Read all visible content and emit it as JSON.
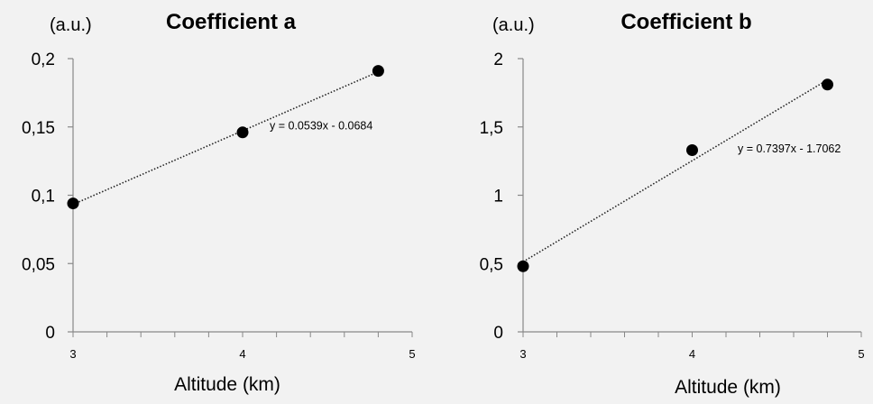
{
  "chart_data": [
    {
      "type": "scatter",
      "title": "Coefficient a",
      "ylabel": "(a.u.)",
      "xlabel": "Altitude (km)",
      "xlim": [
        3,
        5
      ],
      "ylim": [
        0,
        0.2
      ],
      "xticks": [
        {
          "value": 3,
          "label": "3"
        },
        {
          "value": 4,
          "label": "4"
        },
        {
          "value": 5,
          "label": "5"
        }
      ],
      "yticks": [
        {
          "value": 0,
          "label": "0"
        },
        {
          "value": 0.05,
          "label": "0,05"
        },
        {
          "value": 0.1,
          "label": "0,1"
        },
        {
          "value": 0.15,
          "label": "0,15"
        },
        {
          "value": 0.2,
          "label": "0,2"
        }
      ],
      "points": [
        {
          "x": 3,
          "y": 0.094
        },
        {
          "x": 4,
          "y": 0.146
        },
        {
          "x": 4.8,
          "y": 0.191
        }
      ],
      "trendline": {
        "slope": 0.0539,
        "intercept": -0.0684,
        "x_range": [
          3,
          4.8
        ],
        "equation": "y = 0.0539x - 0.0684"
      },
      "grid": false
    },
    {
      "type": "scatter",
      "title": "Coefficient b",
      "ylabel": "(a.u.)",
      "xlabel": "Altitude (km)",
      "xlim": [
        3,
        5
      ],
      "ylim": [
        0,
        2
      ],
      "xticks": [
        {
          "value": 3,
          "label": "3"
        },
        {
          "value": 4,
          "label": "4"
        },
        {
          "value": 5,
          "label": "5"
        }
      ],
      "yticks": [
        {
          "value": 0,
          "label": "0"
        },
        {
          "value": 0.5,
          "label": "0,5"
        },
        {
          "value": 1,
          "label": "1"
        },
        {
          "value": 1.5,
          "label": "1,5"
        },
        {
          "value": 2,
          "label": "2"
        }
      ],
      "points": [
        {
          "x": 3,
          "y": 0.48
        },
        {
          "x": 4,
          "y": 1.33
        },
        {
          "x": 4.8,
          "y": 1.81
        }
      ],
      "trendline": {
        "slope": 0.7397,
        "intercept": -1.7062,
        "x_range": [
          3,
          4.8
        ],
        "equation": "y = 0.7397x - 1.7062"
      },
      "grid": false
    }
  ]
}
